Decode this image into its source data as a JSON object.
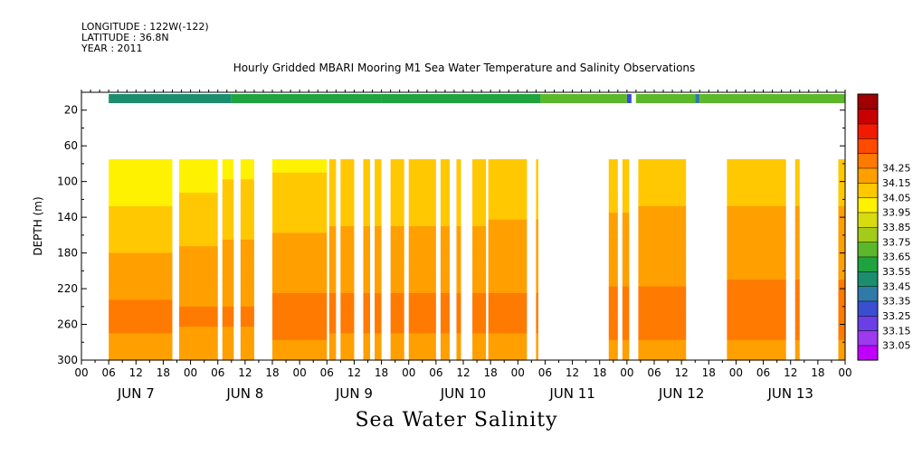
{
  "header": {
    "longitude": "LONGITUDE : 122W(-122)",
    "latitude": "LATITUDE : 36.8N",
    "year": "YEAR : 2011"
  },
  "title": "Hourly Gridded MBARI Mooring M1 Sea Water Temperature and Salinity Observations",
  "caption": "Sea Water Salinity",
  "chart_data": {
    "type": "heatmap",
    "title": "Hourly Gridded MBARI Mooring M1 Sea Water Temperature and Salinity Observations",
    "ylabel": "DEPTH (m)",
    "xlabel": "",
    "x_units": "hours since 2011-06-07 00:00",
    "xlim": [
      0,
      168
    ],
    "ylim": [
      300,
      0
    ],
    "y_inverted": true,
    "x_hour_ticks": [
      "00",
      "06",
      "12",
      "18",
      "00",
      "06",
      "12",
      "18",
      "00",
      "06",
      "12",
      "18",
      "00",
      "06",
      "12",
      "18",
      "00",
      "06",
      "12",
      "18",
      "00",
      "06",
      "12",
      "18",
      "00",
      "06",
      "12",
      "18",
      "00"
    ],
    "day_labels": [
      "JUN  7",
      "JUN  8",
      "JUN  9",
      "JUN 10",
      "JUN 11",
      "JUN 12",
      "JUN 13"
    ],
    "y_ticks": [
      20,
      60,
      100,
      140,
      180,
      220,
      260,
      300
    ],
    "colorbar": {
      "levels": [
        "33.05",
        "33.15",
        "33.25",
        "33.35",
        "33.45",
        "33.55",
        "33.65",
        "33.75",
        "33.85",
        "33.95",
        "34.05",
        "34.15",
        "34.25"
      ],
      "colors": [
        "#c000ff",
        "#9d39ee",
        "#6a3fe6",
        "#3a4fcf",
        "#2f7aa8",
        "#1b8e6e",
        "#1fa33f",
        "#5bb82a",
        "#a3cc1a",
        "#d7dc10",
        "#fff200",
        "#ffc800",
        "#ff9f00",
        "#ff7a00",
        "#ff4a00",
        "#f21a00",
        "#c80000",
        "#a00000"
      ]
    },
    "surface_row": {
      "depth": 1,
      "segments": [
        {
          "x0": 6,
          "x1": 33,
          "value": 33.47
        },
        {
          "x0": 33,
          "x1": 66,
          "value": 33.55
        },
        {
          "x0": 66,
          "x1": 101,
          "value": 33.62
        },
        {
          "x0": 101,
          "x1": 120,
          "value": 33.66
        },
        {
          "x0": 120,
          "x1": 121,
          "value": 33.3
        },
        {
          "x0": 122,
          "x1": 135,
          "value": 33.66
        },
        {
          "x0": 135,
          "x1": 136,
          "value": 33.4
        },
        {
          "x0": 136,
          "x1": 168,
          "value": 33.7
        }
      ]
    },
    "profile_depths": [
      75,
      100,
      130,
      160,
      190,
      220,
      250,
      280,
      300
    ],
    "profiles": [
      {
        "x0": 6,
        "x1": 20,
        "values": [
          33.95,
          33.98,
          34.05,
          34.12,
          34.16,
          34.2,
          34.3,
          34.22,
          34.2
        ]
      },
      {
        "x0": 21.5,
        "x1": 30,
        "values": [
          33.98,
          34.02,
          34.08,
          34.14,
          34.17,
          34.21,
          34.28,
          34.22,
          34.2
        ]
      },
      {
        "x0": 31,
        "x1": 33.5,
        "values": [
          34.02,
          34.05,
          34.1,
          34.14,
          34.18,
          34.22,
          34.27,
          34.22,
          34.2
        ]
      },
      {
        "x0": 35,
        "x1": 38,
        "values": [
          34.02,
          34.05,
          34.1,
          34.14,
          34.18,
          34.22,
          34.27,
          34.22,
          34.2
        ]
      },
      {
        "x0": 42,
        "x1": 54,
        "values": [
          34.03,
          34.06,
          34.12,
          34.15,
          34.19,
          34.24,
          34.29,
          34.24,
          34.21
        ]
      },
      {
        "x0": 54.5,
        "x1": 56,
        "values": [
          34.05,
          34.08,
          34.13,
          34.16,
          34.2,
          34.24,
          34.28,
          34.24,
          34.21
        ]
      },
      {
        "x0": 57,
        "x1": 60,
        "values": [
          34.05,
          34.08,
          34.13,
          34.16,
          34.2,
          34.24,
          34.28,
          34.24,
          34.21
        ]
      },
      {
        "x0": 62,
        "x1": 63.5,
        "values": [
          34.05,
          34.08,
          34.13,
          34.16,
          34.2,
          34.24,
          34.28,
          34.24,
          34.21
        ]
      },
      {
        "x0": 64.5,
        "x1": 66,
        "values": [
          34.05,
          34.08,
          34.13,
          34.16,
          34.2,
          34.24,
          34.28,
          34.24,
          34.21
        ]
      },
      {
        "x0": 68,
        "x1": 71,
        "values": [
          34.05,
          34.08,
          34.13,
          34.16,
          34.2,
          34.24,
          34.28,
          34.24,
          34.21
        ]
      },
      {
        "x0": 72,
        "x1": 78,
        "values": [
          34.05,
          34.08,
          34.13,
          34.16,
          34.2,
          34.24,
          34.28,
          34.24,
          34.21
        ]
      },
      {
        "x0": 79,
        "x1": 81,
        "values": [
          34.05,
          34.08,
          34.13,
          34.16,
          34.2,
          34.24,
          34.28,
          34.24,
          34.21
        ]
      },
      {
        "x0": 82.5,
        "x1": 83.5,
        "values": [
          34.05,
          34.08,
          34.13,
          34.16,
          34.2,
          34.24,
          34.28,
          34.24,
          34.21
        ]
      },
      {
        "x0": 86,
        "x1": 89,
        "values": [
          34.05,
          34.08,
          34.13,
          34.16,
          34.2,
          34.24,
          34.28,
          34.24,
          34.21
        ]
      },
      {
        "x0": 89.5,
        "x1": 98,
        "values": [
          34.06,
          34.09,
          34.13,
          34.17,
          34.2,
          34.24,
          34.28,
          34.24,
          34.21
        ]
      },
      {
        "x0": 100,
        "x1": 100.5,
        "values": [
          34.06,
          34.09,
          34.13,
          34.17,
          34.2,
          34.24,
          34.28,
          34.24,
          34.21
        ]
      },
      {
        "x0": 116,
        "x1": 118,
        "values": [
          34.07,
          34.1,
          34.14,
          34.18,
          34.21,
          34.25,
          34.29,
          34.25,
          34.22
        ]
      },
      {
        "x0": 119,
        "x1": 120.5,
        "values": [
          34.07,
          34.1,
          34.14,
          34.18,
          34.21,
          34.25,
          34.29,
          34.25,
          34.22
        ]
      },
      {
        "x0": 122.5,
        "x1": 133,
        "values": [
          34.08,
          34.11,
          34.15,
          34.18,
          34.21,
          34.25,
          34.29,
          34.25,
          34.22
        ]
      },
      {
        "x0": 142,
        "x1": 155,
        "values": [
          34.07,
          34.11,
          34.15,
          34.19,
          34.22,
          34.26,
          34.3,
          34.25,
          34.22
        ]
      },
      {
        "x0": 157,
        "x1": 158,
        "values": [
          34.07,
          34.11,
          34.15,
          34.19,
          34.22,
          34.26,
          34.3,
          34.25,
          34.22
        ]
      },
      {
        "x0": 166.5,
        "x1": 168,
        "values": [
          34.07,
          34.11,
          34.15,
          34.19,
          34.22,
          34.26,
          34.3,
          34.25,
          34.22
        ]
      }
    ]
  }
}
